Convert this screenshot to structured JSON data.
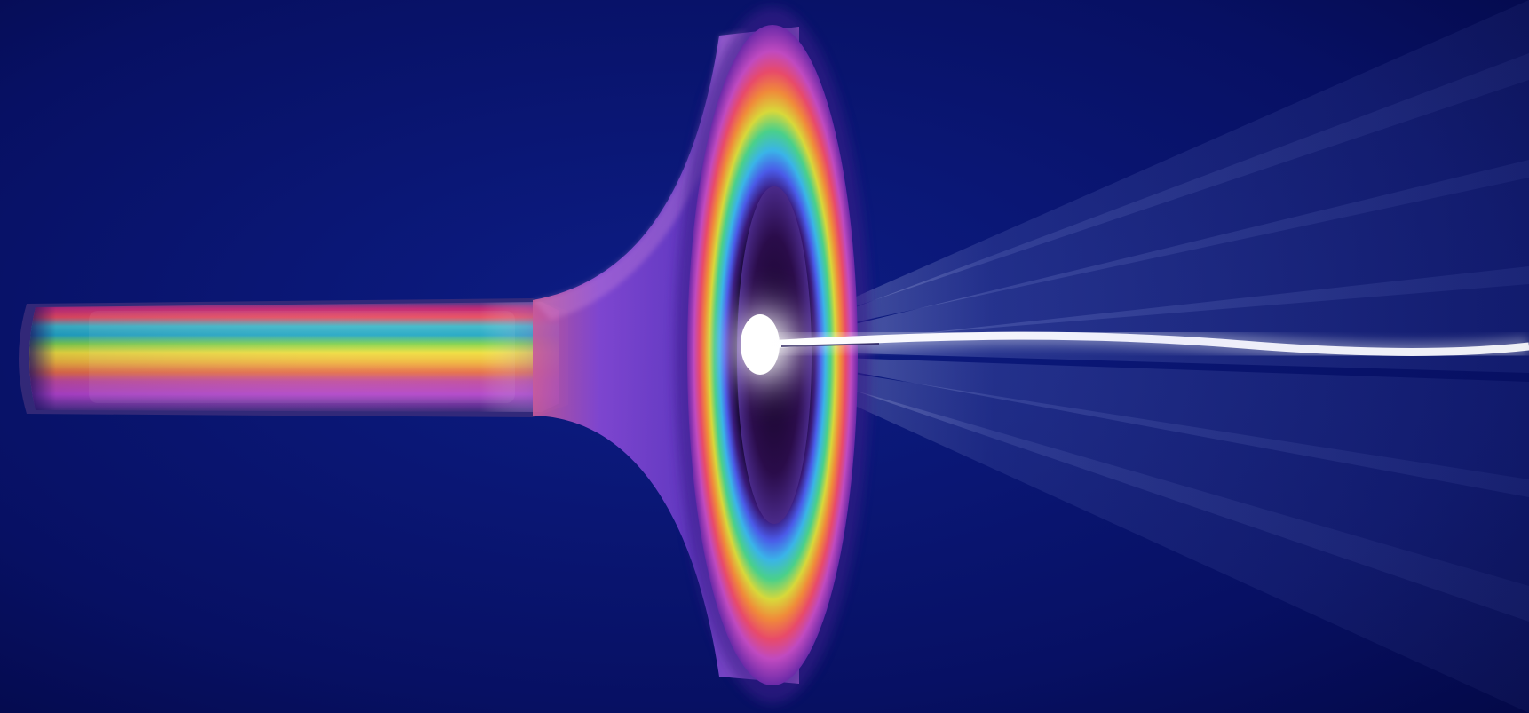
{
  "scene": {
    "colors": {
      "background_dark": "#03063a",
      "background_mid": "#0a1a7a",
      "tube_outline": "#5a4f9a",
      "rainbow": [
        "#c8346e",
        "#e8485a",
        "#f08a3a",
        "#f2d23a",
        "#9ad94a",
        "#2ec9a0",
        "#33b6d8",
        "#3b6fe0",
        "#7a4fd8",
        "#b04ed0",
        "#c86ac8"
      ],
      "core_glow": "#ffffff",
      "beam": "#c8d4ff"
    },
    "icons": [
      "rainbow-tube",
      "funnel-horn",
      "rainbow-ring",
      "light-core",
      "light-beam"
    ]
  }
}
